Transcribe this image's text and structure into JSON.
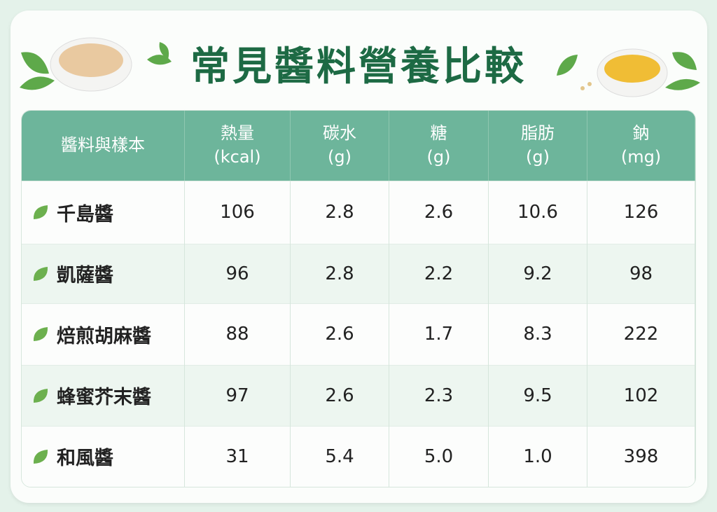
{
  "title": "常見醬料營養比較",
  "table": {
    "header": [
      [
        "醬料與樣本"
      ],
      [
        "熱量",
        "(kcal)"
      ],
      [
        "碳水",
        "(g)"
      ],
      [
        "糖",
        "(g)"
      ],
      [
        "脂肪",
        "(g)"
      ],
      [
        "鈉",
        "(mg)"
      ]
    ],
    "rows": [
      [
        "千島醬",
        "106",
        "2.8",
        "2.6",
        "10.6",
        "126"
      ],
      [
        "凱薩醬",
        "96",
        "2.8",
        "2.2",
        "9.2",
        "98"
      ],
      [
        "焙煎胡麻醬",
        "88",
        "2.6",
        "1.7",
        "8.3",
        "222"
      ],
      [
        "蜂蜜芥末醬",
        "97",
        "2.6",
        "2.3",
        "9.5",
        "102"
      ],
      [
        "和風醬",
        "31",
        "5.4",
        "5.0",
        "1.0",
        "398"
      ]
    ]
  }
}
